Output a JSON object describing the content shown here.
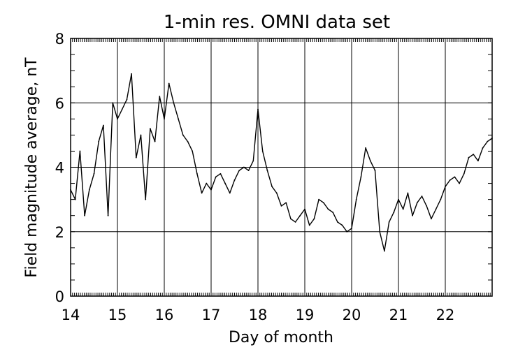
{
  "chart_data": {
    "type": "line",
    "title": "1-min res. OMNI data set",
    "xlabel": "Day of month",
    "ylabel": "Field magnitude average, nT",
    "xlim": [
      14,
      23
    ],
    "ylim": [
      0,
      8
    ],
    "x_ticks": [
      "14",
      "15",
      "16",
      "17",
      "18",
      "19",
      "20",
      "21",
      "22"
    ],
    "y_ticks": [
      "0",
      "2",
      "4",
      "6",
      "8"
    ],
    "grid": true,
    "legend": "none",
    "line_color": "#000000",
    "series": [
      {
        "x": [
          14.0,
          14.1,
          14.2,
          14.3,
          14.4,
          14.5,
          14.6,
          14.7,
          14.8,
          14.9,
          15.0,
          15.1,
          15.2,
          15.3,
          15.4,
          15.5,
          15.6,
          15.7,
          15.8,
          15.9,
          16.0,
          16.1,
          16.2,
          16.3,
          16.4,
          16.5,
          16.6,
          16.7,
          16.8,
          16.9,
          17.0,
          17.1,
          17.2,
          17.3,
          17.4,
          17.5,
          17.6,
          17.7,
          17.8,
          17.9,
          18.0,
          18.1,
          18.2,
          18.3,
          18.4,
          18.5,
          18.6,
          18.7,
          18.8,
          18.9,
          19.0,
          19.1,
          19.2,
          19.3,
          19.4,
          19.5,
          19.6,
          19.7,
          19.8,
          19.9,
          20.0,
          20.1,
          20.2,
          20.3,
          20.4,
          20.5,
          20.6,
          20.7,
          20.8,
          20.9,
          21.0,
          21.1,
          21.2,
          21.3,
          21.4,
          21.5,
          21.6,
          21.7,
          21.8,
          21.9,
          22.0,
          22.1,
          22.2,
          22.3,
          22.4,
          22.5,
          22.6,
          22.7,
          22.8,
          22.9,
          23.0
        ],
        "values": [
          3.3,
          3.0,
          4.5,
          2.5,
          3.3,
          3.8,
          4.8,
          5.3,
          2.5,
          6.0,
          5.5,
          5.8,
          6.1,
          6.9,
          4.3,
          5.0,
          3.0,
          5.2,
          4.8,
          6.2,
          5.5,
          6.6,
          6.0,
          5.5,
          5.0,
          4.8,
          4.5,
          3.8,
          3.2,
          3.5,
          3.3,
          3.7,
          3.8,
          3.5,
          3.2,
          3.6,
          3.9,
          4.0,
          3.9,
          4.2,
          5.8,
          4.5,
          3.9,
          3.4,
          3.2,
          2.8,
          2.9,
          2.4,
          2.3,
          2.5,
          2.7,
          2.2,
          2.4,
          3.0,
          2.9,
          2.7,
          2.6,
          2.3,
          2.2,
          2.0,
          2.1,
          3.0,
          3.7,
          4.6,
          4.2,
          3.9,
          2.0,
          1.4,
          2.3,
          2.6,
          3.0,
          2.7,
          3.2,
          2.5,
          2.9,
          3.1,
          2.8,
          2.4,
          2.7,
          3.0,
          3.4,
          3.6,
          3.7,
          3.5,
          3.8,
          4.3,
          4.4,
          4.2,
          4.6,
          4.8,
          4.9
        ]
      }
    ]
  }
}
